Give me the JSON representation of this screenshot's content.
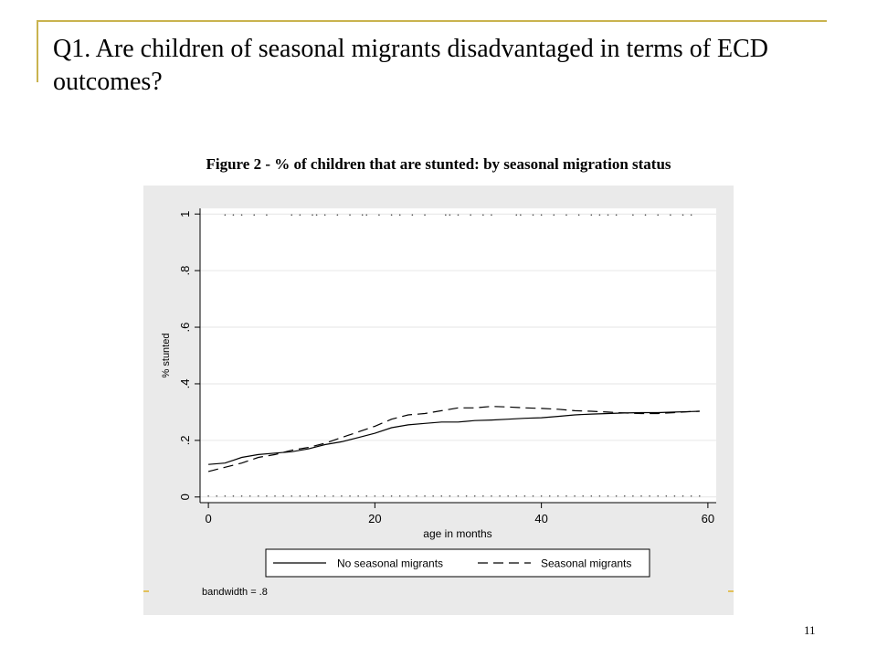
{
  "slide": {
    "title": "Q1. Are children of seasonal migrants disadvantaged in terms of ECD outcomes?",
    "figure_caption": "Figure 2 - % of children that are stunted: by seasonal migration status",
    "page_number": "11"
  },
  "chart_data": {
    "type": "line",
    "xlabel": "age in months",
    "ylabel": "% stunted",
    "xlim": [
      -1,
      61
    ],
    "ylim": [
      -0.02,
      1.02
    ],
    "x_ticks": [
      0,
      20,
      40,
      60
    ],
    "x_tick_labels": [
      "0",
      "20",
      "40",
      "60"
    ],
    "y_ticks": [
      0,
      0.2,
      0.4,
      0.6,
      0.8,
      1
    ],
    "y_tick_labels": [
      "0",
      ".2",
      ".4",
      ".6",
      ".8",
      "1"
    ],
    "grid": true,
    "legend_position": "bottom",
    "note": "bandwidth = .8",
    "series": [
      {
        "name": "No seasonal migrants",
        "style": "solid",
        "color": "#000000",
        "x": [
          0,
          2,
          4,
          6,
          8,
          10,
          12,
          14,
          16,
          18,
          20,
          22,
          24,
          26,
          28,
          30,
          32,
          34,
          36,
          38,
          40,
          42,
          44,
          46,
          48,
          50,
          52,
          54,
          56,
          58,
          59
        ],
        "y": [
          0.115,
          0.12,
          0.14,
          0.15,
          0.155,
          0.16,
          0.17,
          0.185,
          0.195,
          0.21,
          0.225,
          0.245,
          0.255,
          0.26,
          0.265,
          0.265,
          0.27,
          0.272,
          0.275,
          0.278,
          0.28,
          0.285,
          0.29,
          0.293,
          0.295,
          0.297,
          0.298,
          0.298,
          0.3,
          0.302,
          0.303
        ]
      },
      {
        "name": "Seasonal migrants",
        "style": "dashed",
        "color": "#000000",
        "x": [
          0,
          2,
          4,
          6,
          8,
          10,
          12,
          14,
          16,
          18,
          20,
          22,
          24,
          26,
          28,
          30,
          32,
          34,
          36,
          38,
          40,
          42,
          44,
          46,
          48,
          50,
          52,
          54,
          56,
          58,
          59
        ],
        "y": [
          0.09,
          0.105,
          0.12,
          0.14,
          0.15,
          0.165,
          0.175,
          0.19,
          0.21,
          0.23,
          0.25,
          0.275,
          0.29,
          0.295,
          0.305,
          0.315,
          0.315,
          0.32,
          0.318,
          0.315,
          0.313,
          0.31,
          0.305,
          0.303,
          0.3,
          0.297,
          0.295,
          0.295,
          0.298,
          0.302,
          0.303
        ]
      }
    ],
    "rug_top_x": [
      2,
      3,
      4,
      5.5,
      7,
      10,
      11,
      12.5,
      13,
      14,
      15.5,
      17,
      18.5,
      19,
      20.5,
      22,
      23,
      24.5,
      26,
      28.5,
      29,
      30,
      31.5,
      33,
      34,
      37,
      37.5,
      39,
      40,
      41.5,
      43,
      44.5,
      46,
      47,
      48,
      49,
      51,
      52.5,
      54,
      55.5,
      57,
      58
    ],
    "rug_bottom_x": [
      0,
      1,
      2,
      3,
      4,
      5,
      6,
      7,
      8,
      9,
      10,
      11,
      12,
      13,
      14,
      15,
      16,
      17,
      18,
      19,
      20,
      21,
      22,
      23,
      24,
      25,
      26,
      27,
      28,
      29,
      30,
      31,
      32,
      33,
      34,
      35,
      36,
      37,
      38,
      39,
      40,
      41,
      42,
      43,
      44,
      45,
      46,
      47,
      48,
      49,
      50,
      51,
      52,
      53,
      54,
      55,
      56,
      57,
      58,
      59
    ]
  }
}
